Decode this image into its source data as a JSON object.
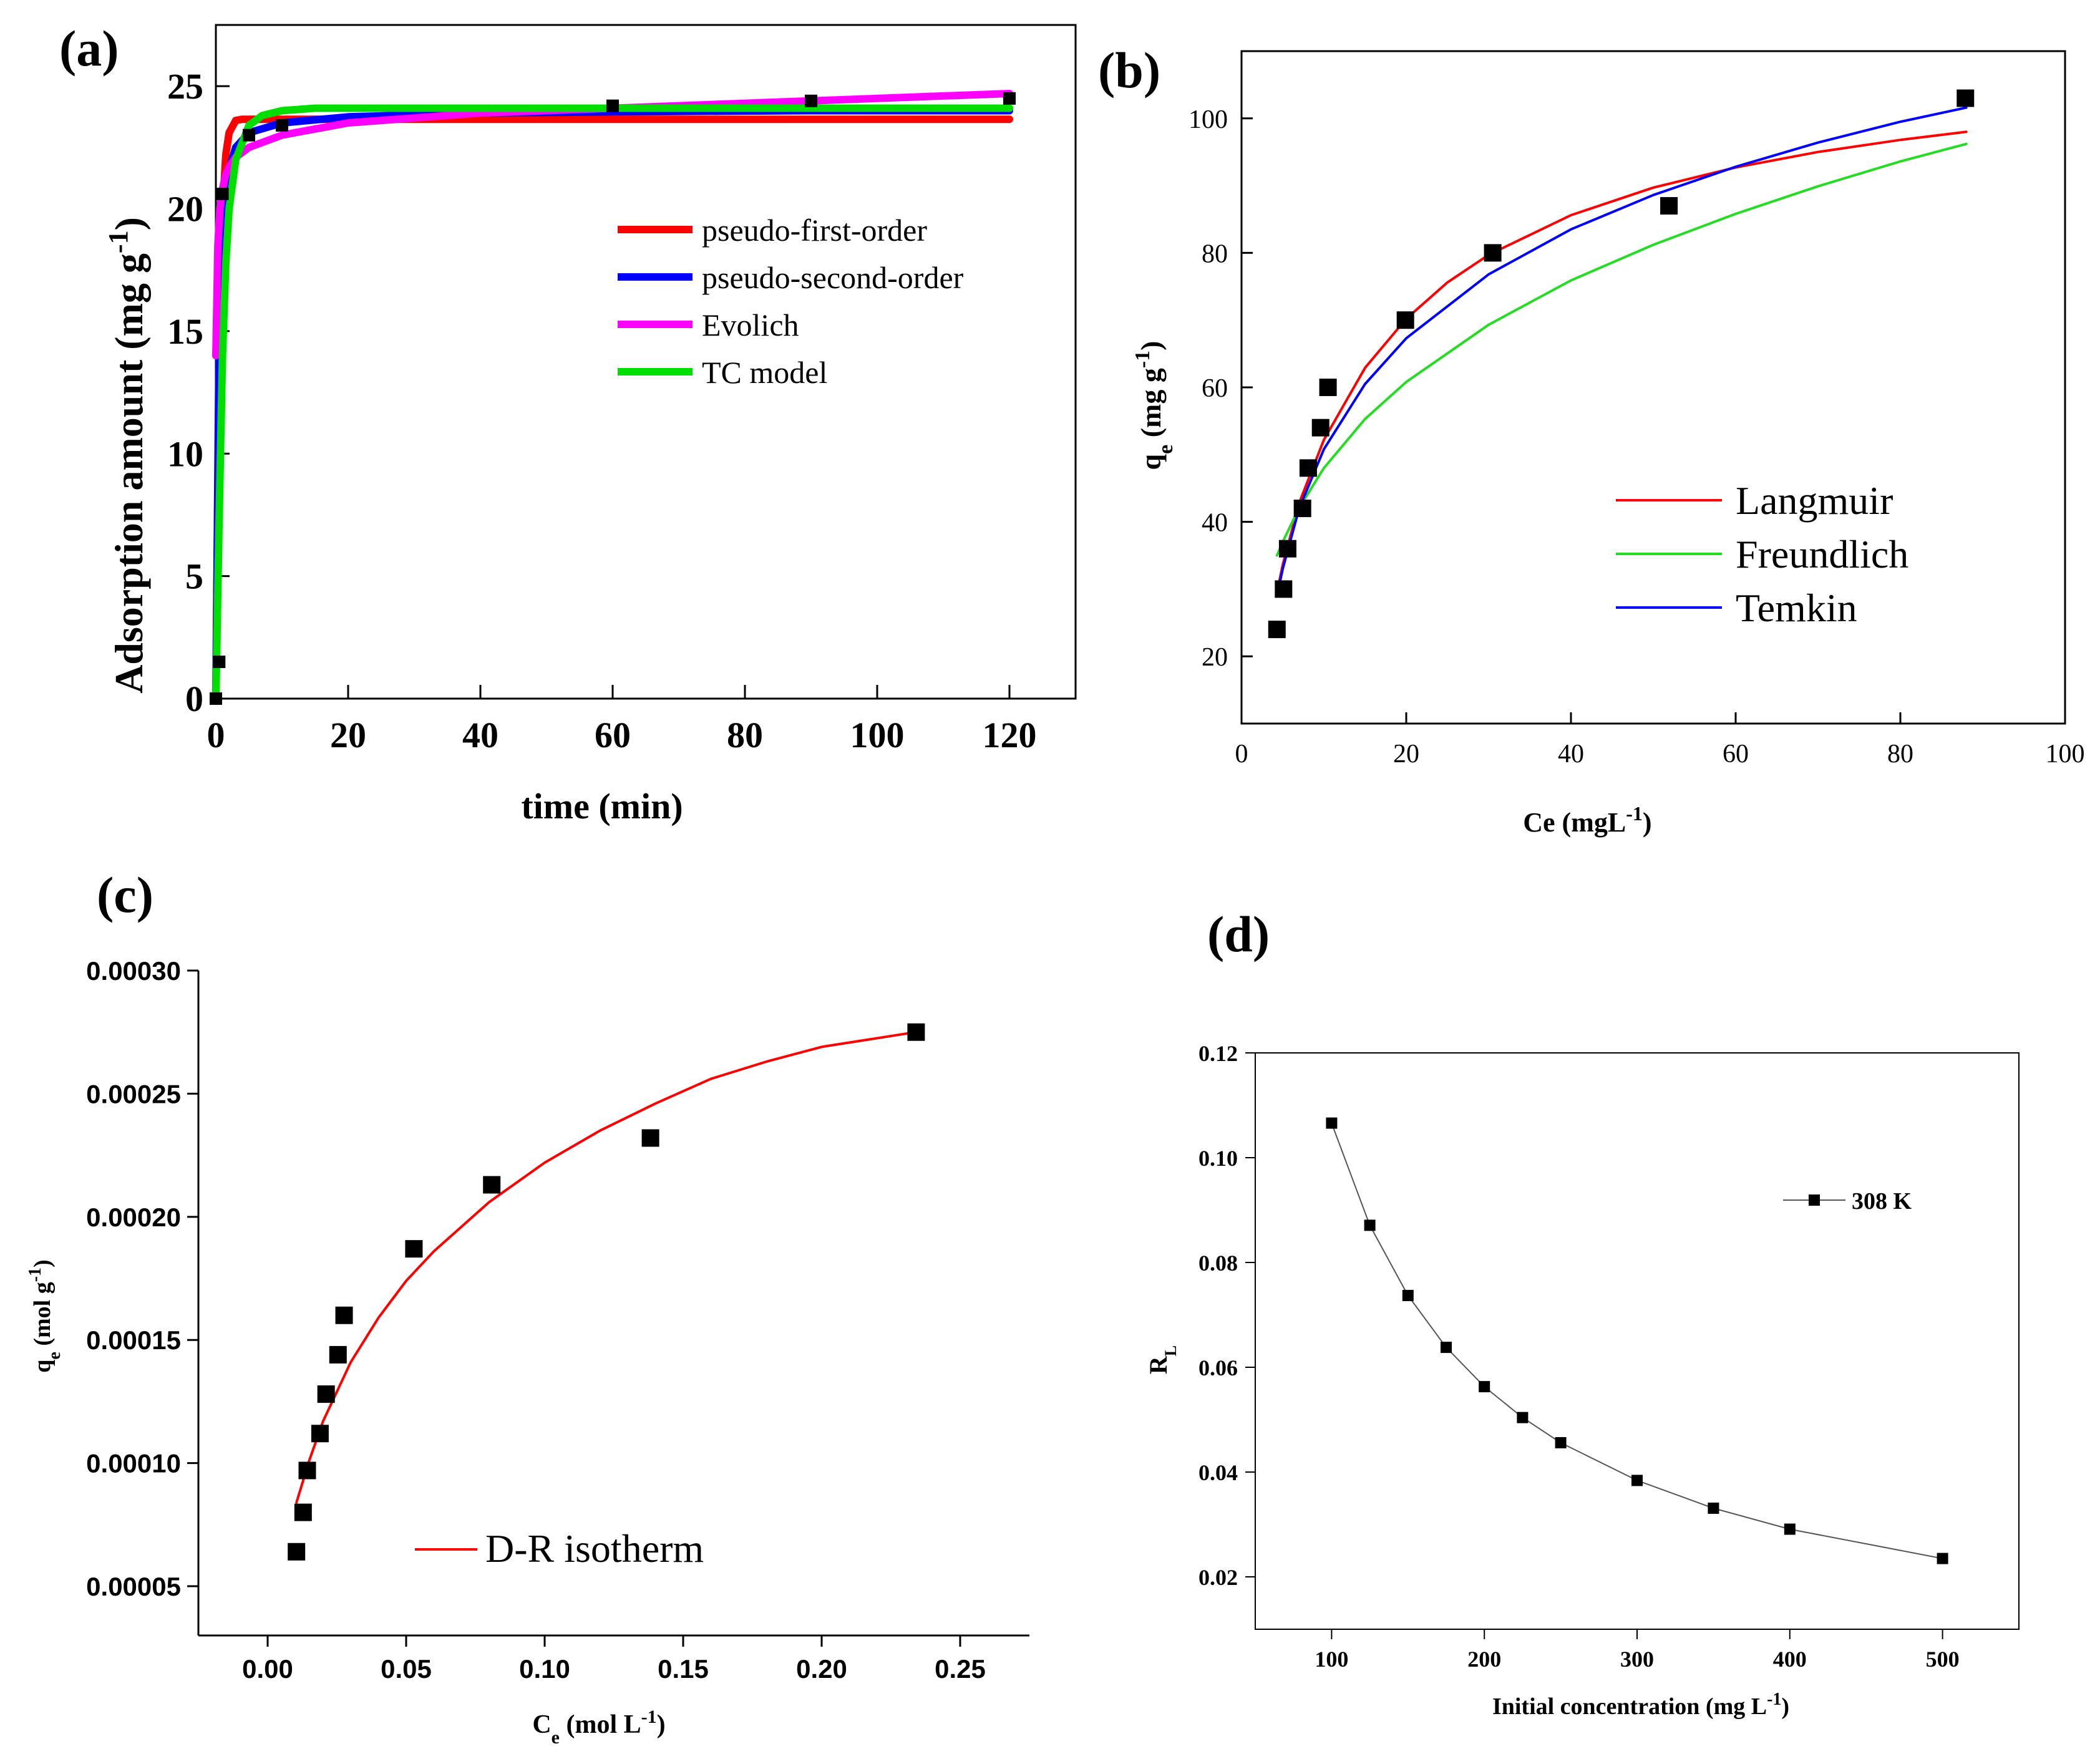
{
  "chart_data": [
    {
      "panel": "(a)",
      "type": "scatter",
      "xlabel": "time (min)",
      "ylabel": "Adsorption amount (mg g",
      "ylabel_sup": "-1",
      "ylabel_close": ")",
      "xlim": [
        0,
        130
      ],
      "ylim": [
        0,
        27.5
      ],
      "xticks": [
        0,
        20,
        40,
        60,
        80,
        100,
        120
      ],
      "yticks": [
        0,
        5,
        10,
        15,
        20,
        25
      ],
      "grid": false,
      "legend_position": "center-right",
      "points": {
        "x": [
          0,
          0.5,
          1,
          5,
          10,
          60,
          90,
          120
        ],
        "y": [
          0,
          1.5,
          20.6,
          23.0,
          23.4,
          24.2,
          24.4,
          24.5
        ]
      },
      "series": [
        {
          "name": "pseudo-first-order",
          "color": "#ff0000",
          "x": [
            0,
            0.5,
            1,
            1.5,
            2,
            3,
            4,
            6,
            10,
            20,
            60,
            120
          ],
          "y": [
            0,
            14.0,
            19.9,
            22.2,
            23.1,
            23.6,
            23.65,
            23.65,
            23.65,
            23.65,
            23.65,
            23.65
          ]
        },
        {
          "name": "pseudo-second-order",
          "color": "#0000ff",
          "x": [
            0,
            0.5,
            1,
            1.5,
            2,
            3,
            5,
            10,
            20,
            40,
            60,
            90,
            120
          ],
          "y": [
            0,
            15.0,
            19.0,
            20.8,
            21.6,
            22.5,
            23.1,
            23.5,
            23.75,
            23.9,
            23.95,
            24.0,
            24.0
          ]
        },
        {
          "name": "Evolich",
          "color": "#ff00ff",
          "x": [
            0,
            0.3,
            0.6,
            1,
            1.5,
            2,
            3,
            5,
            10,
            20,
            40,
            60,
            90,
            120
          ],
          "y": [
            14,
            18.5,
            20.0,
            20.8,
            21.4,
            21.7,
            22.1,
            22.5,
            23.0,
            23.5,
            23.9,
            24.1,
            24.4,
            24.7
          ]
        },
        {
          "name": "TC model",
          "color": "#00dd00",
          "x": [
            0,
            0.5,
            1,
            1.5,
            2,
            3,
            5,
            7,
            10,
            15,
            30,
            60,
            120
          ],
          "y": [
            0,
            7.5,
            14.0,
            17.8,
            20.0,
            22.0,
            23.4,
            23.8,
            24.0,
            24.1,
            24.1,
            24.1,
            24.1
          ]
        }
      ]
    },
    {
      "panel": "(b)",
      "type": "scatter",
      "xlabel": "Ce (mgL",
      "xlabel_sup": "-1",
      "xlabel_close": ")",
      "ylabel_main": "q",
      "ylabel_sub": "e",
      "ylabel_rest": " (mg g",
      "ylabel_sup": "-1",
      "ylabel_close": ")",
      "xlim": [
        0,
        100
      ],
      "ylim": [
        10,
        110
      ],
      "xticks": [
        0,
        20,
        40,
        60,
        80,
        100
      ],
      "yticks": [
        20,
        40,
        60,
        80,
        100
      ],
      "grid": false,
      "legend_position": "lower-right",
      "points": {
        "x": [
          4.3,
          5.1,
          5.6,
          7.4,
          8.1,
          9.6,
          10.5,
          19.9,
          30.5,
          51.9,
          87.9
        ],
        "y": [
          24,
          30,
          36,
          42,
          48,
          54,
          60,
          70,
          80,
          87,
          103
        ]
      },
      "series": [
        {
          "name": "Langmuir",
          "color": "#ff0000",
          "x": [
            4.3,
            5,
            7,
            10,
            15,
            20,
            25,
            30,
            40,
            50,
            60,
            70,
            80,
            88
          ],
          "y": [
            29.5,
            33.6,
            42.8,
            52.2,
            62.9,
            70.2,
            75.6,
            79.7,
            85.6,
            89.7,
            92.7,
            95.0,
            96.8,
            98.0
          ]
        },
        {
          "name": "Freundlich",
          "color": "#22dd22",
          "x": [
            4.3,
            5,
            7,
            10,
            15,
            20,
            30,
            40,
            50,
            60,
            70,
            80,
            88
          ],
          "y": [
            35.0,
            37.0,
            42.1,
            48.0,
            55.3,
            60.8,
            69.3,
            75.9,
            81.2,
            85.8,
            89.9,
            93.6,
            96.2
          ]
        },
        {
          "name": "Temkin",
          "color": "#0000ff",
          "x": [
            4.3,
            5,
            7,
            10,
            15,
            20,
            30,
            40,
            50,
            60,
            70,
            80,
            88
          ],
          "y": [
            29.0,
            33.0,
            42.0,
            50.8,
            60.5,
            67.3,
            76.8,
            83.5,
            88.6,
            92.8,
            96.4,
            99.5,
            101.6
          ]
        }
      ]
    },
    {
      "panel": "(c)",
      "type": "scatter",
      "xlabel_main": "C",
      "xlabel_sub": "e",
      "xlabel_rest": " (mol L",
      "xlabel_sup": "-1",
      "xlabel_close": ")",
      "ylabel_main": "q",
      "ylabel_sub": "e",
      "ylabel_rest": " (mol g",
      "ylabel_sup": "-1",
      "ylabel_close": ")",
      "xlim": [
        -0.025,
        0.275
      ],
      "ylim": [
        3e-05,
        0.0003
      ],
      "xticks": [
        0.0,
        0.05,
        0.1,
        0.15,
        0.2,
        0.25
      ],
      "xtick_labels": [
        "0.00",
        "0.05",
        "0.10",
        "0.15",
        "0.20",
        "0.25"
      ],
      "yticks": [
        5e-05,
        0.0001,
        0.00015,
        0.0002,
        0.00025,
        0.0003
      ],
      "ytick_labels": [
        "0.00005",
        "0.00010",
        "0.00015",
        "0.00020",
        "0.00025",
        "0.00030"
      ],
      "grid": false,
      "legend_position": "bottom-center",
      "points": {
        "x": [
          0.0104,
          0.0128,
          0.0143,
          0.0189,
          0.0211,
          0.0254,
          0.0276,
          0.0528,
          0.0809,
          0.1382,
          0.2341
        ],
        "y": [
          6.4e-05,
          8e-05,
          9.7e-05,
          0.000112,
          0.000128,
          0.000144,
          0.00016,
          0.000187,
          0.000213,
          0.000232,
          0.000275
        ]
      },
      "series": [
        {
          "name": "D-R isotherm",
          "color": "#ff0000",
          "x": [
            0.0104,
            0.015,
            0.02,
            0.03,
            0.04,
            0.05,
            0.06,
            0.08,
            0.1,
            0.12,
            0.14,
            0.16,
            0.18,
            0.2,
            0.234
          ],
          "y": [
            8.4e-05,
            0.000101,
            0.000117,
            0.000141,
            0.000159,
            0.000174,
            0.000186,
            0.000206,
            0.000222,
            0.000235,
            0.000246,
            0.000256,
            0.000263,
            0.000269,
            0.000275
          ]
        }
      ]
    },
    {
      "panel": "(d)",
      "type": "line",
      "xlabel": "Initial concentration (mg L",
      "xlabel_sup": "-1",
      "xlabel_close": ")",
      "ylabel_main": "R",
      "ylabel_sub": "L",
      "xlim": [
        50,
        550
      ],
      "ylim": [
        0.01,
        0.12
      ],
      "xticks": [
        100,
        200,
        300,
        400,
        500
      ],
      "yticks": [
        0.02,
        0.04,
        0.06,
        0.08,
        0.1,
        0.12
      ],
      "ytick_labels": [
        "0.02",
        "0.04",
        "0.06",
        "0.08",
        "0.10",
        "0.12"
      ],
      "grid": false,
      "legend_position": "top-right",
      "series": [
        {
          "name": "308 K",
          "color": "#000000",
          "x": [
            100,
            125,
            150,
            175,
            200,
            225,
            250,
            300,
            350,
            400,
            500
          ],
          "y": [
            0.1066,
            0.0871,
            0.0737,
            0.0638,
            0.0563,
            0.0504,
            0.0456,
            0.0384,
            0.0331,
            0.0291,
            0.0235
          ]
        }
      ]
    }
  ]
}
